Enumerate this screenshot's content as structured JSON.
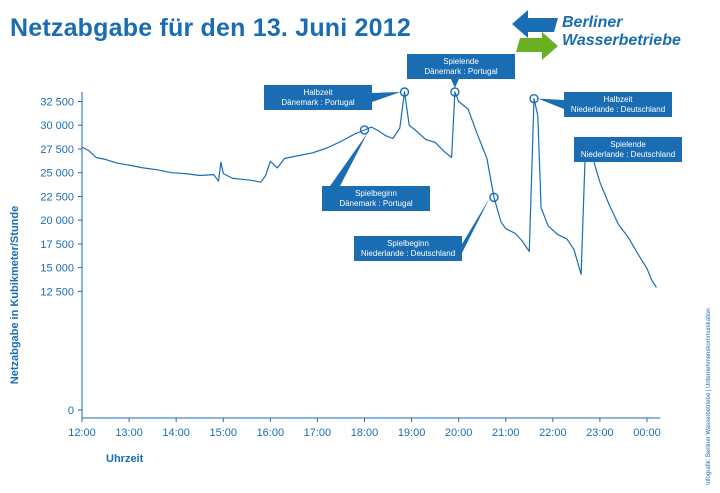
{
  "title": "Netzabgabe für den 13. Juni 2012",
  "logo": {
    "line1": "Berliner",
    "line2": "Wasserbetriebe",
    "colors": {
      "arrow_top": "#1a6db3",
      "arrow_bottom": "#6ab023"
    }
  },
  "credit": "Infografik: Berliner Wasserbetriebe | Unternehmenskommunikation",
  "colors": {
    "accent": "#1a6db3",
    "line": "#1a6db3",
    "annotation_bg": "#1a6db3"
  },
  "chart_data": {
    "type": "line",
    "title": "Netzabgabe für den 13. Juni 2012",
    "xlabel": "Uhrzeit",
    "ylabel": "Netzabgabe in Kubikmeter/Stunde",
    "ylim": [
      0,
      33500
    ],
    "y_ticks": [
      "0",
      "12 500",
      "15 000",
      "17 500",
      "20 000",
      "22 500",
      "25 000",
      "27 500",
      "30 000",
      "32 500"
    ],
    "y_tick_values": [
      0,
      12500,
      15000,
      17500,
      20000,
      22500,
      25000,
      27500,
      30000,
      32500
    ],
    "x_ticks": [
      "12:00",
      "13:00",
      "14:00",
      "15:00",
      "16:00",
      "17:00",
      "18:00",
      "19:00",
      "20:00",
      "21:00",
      "22:00",
      "23:00",
      "00:00"
    ],
    "x_tick_values": [
      12,
      13,
      14,
      15,
      16,
      17,
      18,
      19,
      20,
      21,
      22,
      23,
      24
    ],
    "x_range": [
      12,
      24.2
    ],
    "grid": false,
    "series": [
      {
        "points": [
          [
            12.0,
            27700
          ],
          [
            12.15,
            27300
          ],
          [
            12.3,
            26600
          ],
          [
            12.5,
            26400
          ],
          [
            12.75,
            26000
          ],
          [
            13.0,
            25800
          ],
          [
            13.3,
            25500
          ],
          [
            13.6,
            25300
          ],
          [
            13.9,
            25000
          ],
          [
            14.2,
            24900
          ],
          [
            14.5,
            24700
          ],
          [
            14.8,
            24800
          ],
          [
            14.9,
            24100
          ],
          [
            14.95,
            26100
          ],
          [
            15.0,
            24900
          ],
          [
            15.2,
            24400
          ],
          [
            15.4,
            24300
          ],
          [
            15.6,
            24200
          ],
          [
            15.8,
            24000
          ],
          [
            15.9,
            24700
          ],
          [
            16.0,
            26200
          ],
          [
            16.15,
            25500
          ],
          [
            16.3,
            26500
          ],
          [
            16.6,
            26800
          ],
          [
            16.9,
            27100
          ],
          [
            17.2,
            27600
          ],
          [
            17.5,
            28300
          ],
          [
            17.8,
            29100
          ],
          [
            18.0,
            29500
          ],
          [
            18.15,
            29800
          ],
          [
            18.3,
            29400
          ],
          [
            18.45,
            28900
          ],
          [
            18.6,
            28600
          ],
          [
            18.75,
            29700
          ],
          [
            18.85,
            33500
          ],
          [
            18.95,
            30000
          ],
          [
            19.1,
            29400
          ],
          [
            19.3,
            28500
          ],
          [
            19.5,
            28200
          ],
          [
            19.7,
            27200
          ],
          [
            19.85,
            26600
          ],
          [
            19.92,
            33500
          ],
          [
            20.0,
            32500
          ],
          [
            20.2,
            31700
          ],
          [
            20.4,
            29000
          ],
          [
            20.6,
            26500
          ],
          [
            20.75,
            22400
          ],
          [
            20.9,
            19800
          ],
          [
            21.0,
            19100
          ],
          [
            21.2,
            18600
          ],
          [
            21.35,
            17800
          ],
          [
            21.5,
            16700
          ],
          [
            21.6,
            32800
          ],
          [
            21.68,
            31000
          ],
          [
            21.75,
            21300
          ],
          [
            21.9,
            19400
          ],
          [
            22.1,
            18500
          ],
          [
            22.3,
            18000
          ],
          [
            22.45,
            16900
          ],
          [
            22.6,
            14300
          ],
          [
            22.68,
            26000
          ],
          [
            22.75,
            27500
          ],
          [
            22.85,
            26500
          ],
          [
            23.0,
            24000
          ],
          [
            23.2,
            21600
          ],
          [
            23.4,
            19500
          ],
          [
            23.6,
            18200
          ],
          [
            23.8,
            16500
          ],
          [
            24.0,
            14900
          ],
          [
            24.1,
            13700
          ],
          [
            24.2,
            12900
          ]
        ]
      }
    ],
    "annotations": [
      {
        "lines": [
          "Halbzeit",
          "Dänemark : Portugal"
        ],
        "x": 18.85,
        "y": 33500
      },
      {
        "lines": [
          "Spielende",
          "Dänemark : Portugal"
        ],
        "x": 19.92,
        "y": 33500
      },
      {
        "lines": [
          "Halbzeit",
          "Niederlande : Deutschland"
        ],
        "x": 21.6,
        "y": 32800
      },
      {
        "lines": [
          "Spielende",
          "Niederlande : Deutschland"
        ],
        "x": 22.75,
        "y": 27500
      },
      {
        "lines": [
          "Spielbeginn",
          "Dänemark : Portugal"
        ],
        "x": 18.0,
        "y": 29500
      },
      {
        "lines": [
          "Spielbeginn",
          "Niederlande : Deutschland"
        ],
        "x": 20.75,
        "y": 22400
      }
    ]
  }
}
